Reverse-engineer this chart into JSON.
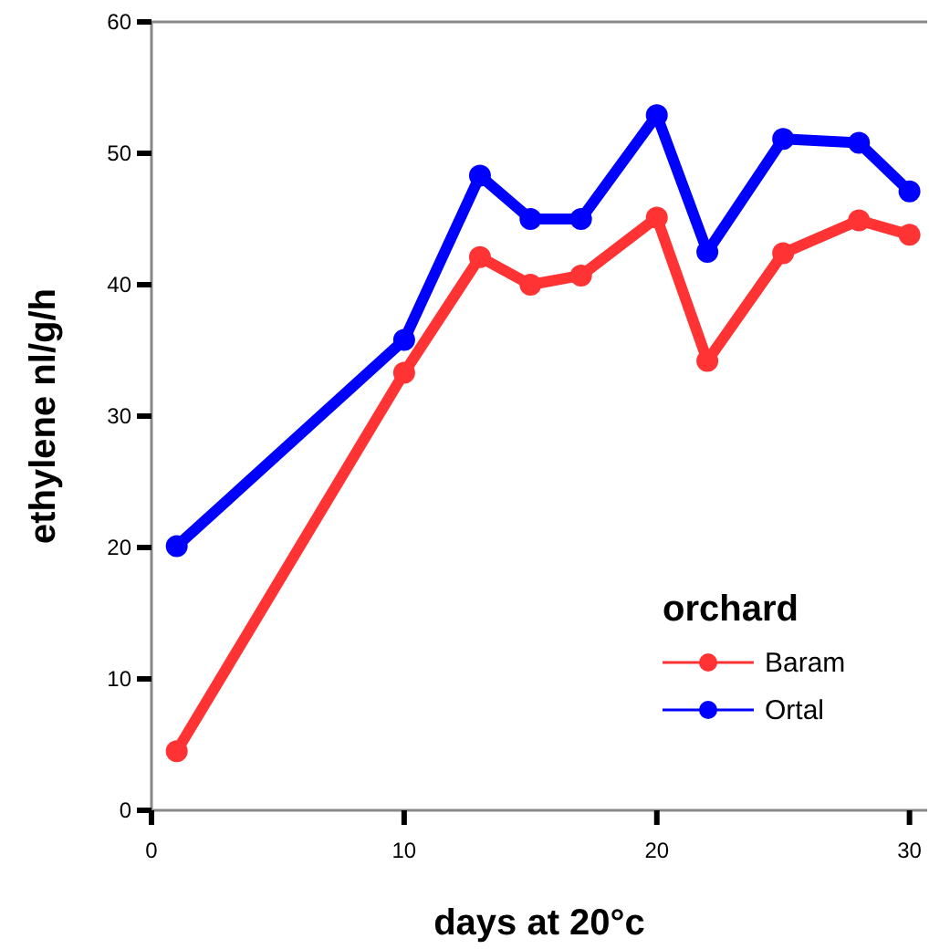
{
  "chart_data": {
    "type": "line",
    "xlabel": "days at 20°c",
    "ylabel": "ethylene nl/g/h",
    "legend_title": "orchard",
    "legend": "bottom right",
    "marker": "circle",
    "line_style": "solid",
    "grid": false,
    "xlim": [
      0,
      30.7
    ],
    "xticks": [
      0,
      10,
      20,
      30
    ],
    "ylim": [
      0,
      60
    ],
    "yticks": [
      0,
      10,
      20,
      30,
      40,
      50,
      60
    ],
    "series": [
      {
        "name": "Baram",
        "color": "#ff3333",
        "x": [
          1,
          10,
          13,
          15,
          17,
          20,
          22,
          25,
          28,
          30
        ],
        "values": [
          4.5,
          33.3,
          42.1,
          40,
          40.7,
          45.1,
          34.2,
          42.4,
          44.9,
          43.8
        ]
      },
      {
        "name": "Ortal",
        "color": "#0000ff",
        "x": [
          1,
          10,
          13,
          15,
          17,
          20,
          22,
          25,
          28,
          30
        ],
        "values": [
          20.1,
          35.8,
          48.3,
          45,
          45,
          52.9,
          42.5,
          51.1,
          50.8,
          47.1
        ]
      }
    ]
  }
}
